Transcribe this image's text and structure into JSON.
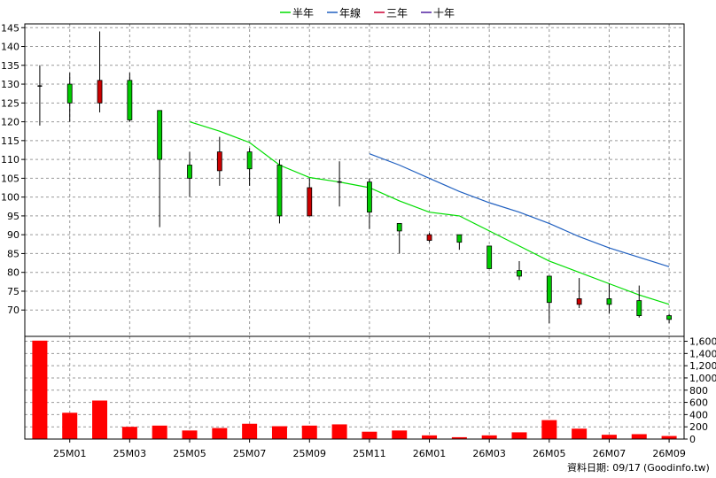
{
  "chart_data": {
    "type": "candlestick",
    "legend": [
      {
        "name": "半年",
        "color": "#00dd00"
      },
      {
        "name": "年線",
        "color": "#2060c0"
      },
      {
        "name": "三年",
        "color": "#cc0033"
      },
      {
        "name": "十年",
        "color": "#5020a0"
      }
    ],
    "price_axis": {
      "ylim": [
        63,
        146
      ],
      "ticks": [
        "70",
        "75",
        "80",
        "85",
        "90",
        "95",
        "100",
        "105",
        "110",
        "115",
        "120",
        "125",
        "130",
        "135",
        "140",
        "145"
      ]
    },
    "volume_axis": {
      "ylim": [
        0,
        1680
      ],
      "ticks": [
        "0",
        "200",
        "400",
        "600",
        "800",
        "1,000",
        "1,200",
        "1,400",
        "1,600"
      ]
    },
    "x_ticks": [
      "25M01",
      "25M03",
      "25M05",
      "25M07",
      "25M09",
      "25M11",
      "26M01",
      "26M03",
      "26M05",
      "26M07",
      "26M09"
    ],
    "up_color": "#00cc00",
    "down_color": "#cc0000",
    "candles": [
      {
        "o": 129.5,
        "h": 135,
        "l": 119,
        "c": 129.5
      },
      {
        "o": 125,
        "h": 133,
        "l": 120,
        "c": 130
      },
      {
        "o": 131,
        "h": 144,
        "l": 122.5,
        "c": 125
      },
      {
        "o": 120.5,
        "h": 133,
        "l": 120,
        "c": 131
      },
      {
        "o": 110,
        "h": 123,
        "l": 92,
        "c": 123
      },
      {
        "o": 105,
        "h": 112,
        "l": 100,
        "c": 108.5
      },
      {
        "o": 112,
        "h": 116,
        "l": 103,
        "c": 107
      },
      {
        "o": 107.5,
        "h": 113,
        "l": 103,
        "c": 112
      },
      {
        "o": 95,
        "h": 110,
        "l": 93,
        "c": 108.5
      },
      {
        "o": 102.5,
        "h": 105,
        "l": 95,
        "c": 95
      },
      {
        "o": 104,
        "h": 109.5,
        "l": 97.5,
        "c": 104
      },
      {
        "o": 96,
        "h": 105,
        "l": 91.5,
        "c": 104
      },
      {
        "o": 91,
        "h": 93,
        "l": 85,
        "c": 93
      },
      {
        "o": 90,
        "h": 90.5,
        "l": 88,
        "c": 88.5
      },
      {
        "o": 88,
        "h": 90,
        "l": 86,
        "c": 90
      },
      {
        "o": 81,
        "h": 87,
        "l": 81,
        "c": 87
      },
      {
        "o": 79,
        "h": 83,
        "l": 78,
        "c": 80.5
      },
      {
        "o": 72,
        "h": 79,
        "l": 66.5,
        "c": 79
      },
      {
        "o": 73,
        "h": 78.5,
        "l": 70.5,
        "c": 71.5
      },
      {
        "o": 71.5,
        "h": 77,
        "l": 69,
        "c": 73
      },
      {
        "o": 68.5,
        "h": 76.5,
        "l": 68,
        "c": 72.5
      },
      {
        "o": 67.5,
        "h": 69,
        "l": 66.5,
        "c": 68.5
      }
    ],
    "volume": [
      1610,
      430,
      630,
      200,
      220,
      140,
      180,
      250,
      210,
      220,
      240,
      120,
      140,
      60,
      30,
      60,
      110,
      310,
      170,
      70,
      80,
      50
    ],
    "lines": [
      {
        "name": "半年",
        "color": "#00dd00",
        "values": [
          null,
          null,
          null,
          null,
          null,
          120,
          117.5,
          114.5,
          108.5,
          105.2,
          104,
          102.5,
          99,
          96,
          95,
          91,
          87,
          83,
          80,
          77,
          74,
          71.5
        ]
      },
      {
        "name": "年線",
        "color": "#2060c0",
        "values": [
          null,
          null,
          null,
          null,
          null,
          null,
          null,
          null,
          null,
          null,
          null,
          111.5,
          108.5,
          105,
          101.5,
          98.5,
          96,
          93,
          89.5,
          86.5,
          84,
          81.5
        ]
      }
    ]
  },
  "footer": {
    "source": "資料日期: 09/17",
    "credit": "(Goodinfo.tw)"
  }
}
